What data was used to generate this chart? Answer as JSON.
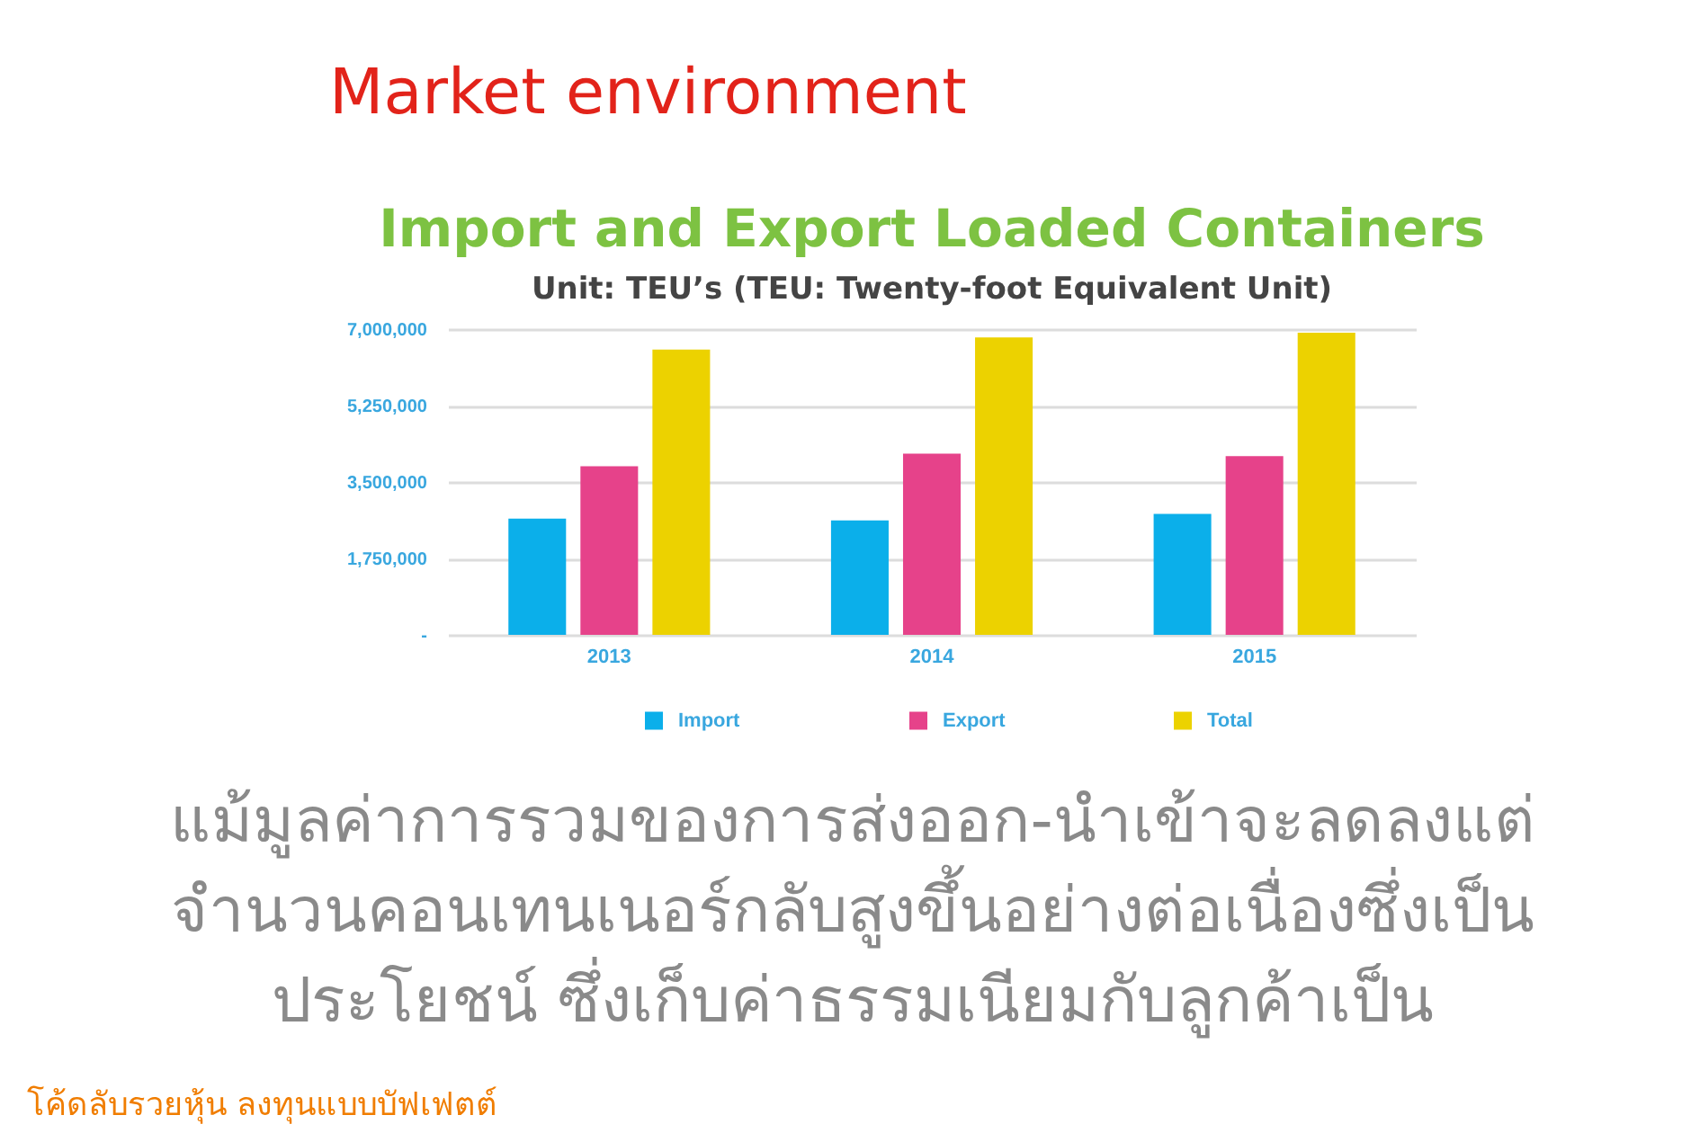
{
  "chart_data": {
    "type": "bar",
    "title": "Import and Export Loaded Containers",
    "subtitle": "Unit: TEU’s (TEU: Twenty-foot Equivalent Unit)",
    "categories": [
      "2013",
      "2014",
      "2015"
    ],
    "series": [
      {
        "name": "Import",
        "color": "#0bafea",
        "values": [
          2660000,
          2620000,
          2770000
        ]
      },
      {
        "name": "Export",
        "color": "#e6428a",
        "values": [
          3860000,
          4150000,
          4090000
        ]
      },
      {
        "name": "Total",
        "color": "#ecd200",
        "values": [
          6530000,
          6810000,
          6920000
        ]
      }
    ],
    "ylim": [
      0,
      7000000
    ],
    "yticks": [
      {
        "value": 0,
        "label": "-"
      },
      {
        "value": 1750000,
        "label": "1,750,000"
      },
      {
        "value": 3500000,
        "label": "3,500,000"
      },
      {
        "value": 5250000,
        "label": "5,250,000"
      },
      {
        "value": 7000000,
        "label": "7,000,000"
      }
    ],
    "grid": "y",
    "legend": "bottom",
    "annotations": [
      "Market environment",
      "แม้มูลค่าการรวมของการส่งออก-นำเข้าจะลดลงแต่",
      "จำนวนคอนเทนเนอร์กลับสูงขึ้นอย่างต่อเนื่องซึ่งเป็น",
      "ประโยชน์ ซึ่งเก็บค่าธรรมเนียมกับลูกค้าเป็น",
      "โค้ดลับรวยหุ้น ลงทุนแบบบัฟเฟตต์"
    ]
  }
}
